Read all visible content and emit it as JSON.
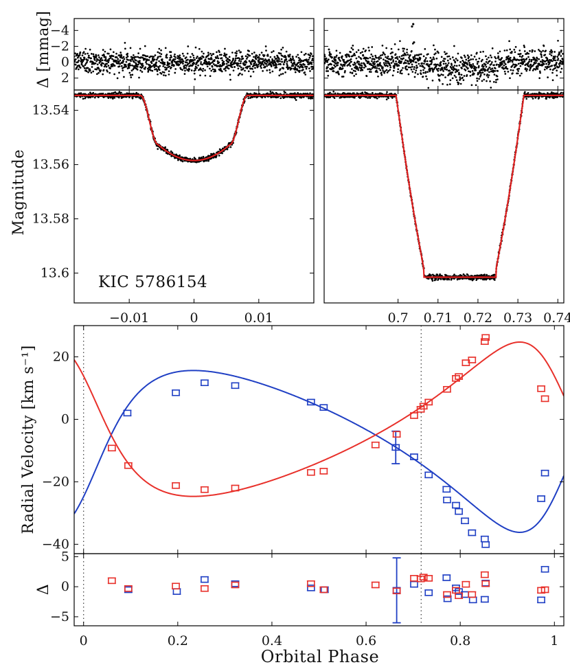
{
  "figure": {
    "object_label": "KIC 5786154",
    "ylabel_residual_top": "Δ  [mmag]",
    "ylabel_magnitude": "Magnitude",
    "ylabel_rv": "Radial Velocity [km s⁻¹]",
    "ylabel_residual_bottom": "Δ",
    "xlabel": "Orbital Phase"
  },
  "colors": {
    "model": "#e02020",
    "primary": "#1f3fc4",
    "secondary": "#e8302a",
    "points": "#000000"
  },
  "chart_data": [
    {
      "id": "lc_resid_left",
      "type": "scatter",
      "title": "",
      "ylabel": "Δ [mmag]",
      "xlim": [
        -0.0185,
        0.0185
      ],
      "ylim": [
        3.5,
        -5.5
      ],
      "yticks": [
        -4,
        -2,
        0,
        2
      ],
      "ytick_labels": [
        "−4",
        "−2",
        "0",
        "2"
      ],
      "description_of_points": "Residuals of ~900 photometric points scattered around 0 with spread of about ±1.5 mmag",
      "x_range_points": [
        -0.0185,
        0.0185
      ],
      "center": 0,
      "scatter_sigma": 0.7
    },
    {
      "id": "lc_resid_right",
      "type": "scatter",
      "ylabel": "",
      "xlim": [
        0.6815,
        0.7415
      ],
      "ylim": [
        3.5,
        -5.5
      ],
      "yticks": [
        -4,
        -2,
        0,
        2
      ],
      "center": 0,
      "scatter_sigma": 0.8,
      "outliers": [
        {
          "x": 0.7035,
          "y": -4.5
        },
        {
          "x": 0.7038,
          "y": -4.8
        },
        {
          "x": 0.704,
          "y": -2.5
        }
      ]
    },
    {
      "id": "lc_primary",
      "type": "line",
      "title": "",
      "ylabel": "Magnitude",
      "xlim": [
        -0.0185,
        0.0185
      ],
      "ylim": [
        13.611,
        13.5325
      ],
      "xticks": [
        -0.01,
        0,
        0.01
      ],
      "xtick_labels": [
        "−0.01",
        "0",
        "0.01"
      ],
      "yticks": [
        13.54,
        13.56,
        13.58,
        13.6
      ],
      "ytick_labels": [
        "13.54",
        "13.56",
        "13.58",
        "13.6"
      ],
      "model": {
        "out_of_eclipse_mag": 13.5345,
        "min_mag": 13.5585,
        "center_phase": 0,
        "first_contact": 0.0083,
        "second_contact": 0.0055,
        "shape": "limb-darkened partial eclipse"
      }
    },
    {
      "id": "lc_secondary",
      "type": "line",
      "ylabel": "",
      "xlim": [
        0.6815,
        0.7415
      ],
      "ylim": [
        13.611,
        13.5325
      ],
      "xticks": [
        0.7,
        0.71,
        0.72,
        0.73,
        0.74
      ],
      "xtick_labels": [
        "0.7",
        "0.71",
        "0.72",
        "0.73",
        "0.74"
      ],
      "model": {
        "out_of_eclipse_mag": 13.5345,
        "min_mag": 13.6015,
        "ingress_start": 0.6995,
        "ingress_end": 0.7065,
        "egress_start": 0.7245,
        "egress_end": 0.7315,
        "shape": "total (flat-bottomed) eclipse"
      }
    },
    {
      "id": "rv",
      "type": "scatter",
      "xlabel": "",
      "ylabel": "Radial Velocity [km s⁻¹]",
      "xlim": [
        -0.02,
        1.02
      ],
      "ylim": [
        -43,
        30
      ],
      "yticks": [
        -40,
        -20,
        0,
        20
      ],
      "ytick_labels": [
        "−40",
        "−20",
        "0",
        "20"
      ],
      "vlines": [
        0,
        0.717
      ],
      "series": [
        {
          "name": "primary",
          "color": "blue",
          "points": [
            {
              "x": 0.093,
              "y": 2.0
            },
            {
              "x": 0.196,
              "y": 8.5
            },
            {
              "x": 0.257,
              "y": 11.7
            },
            {
              "x": 0.322,
              "y": 10.8
            },
            {
              "x": 0.483,
              "y": 5.5
            },
            {
              "x": 0.51,
              "y": 3.8
            },
            {
              "x": 0.663,
              "y": -9.0,
              "err": 5.2
            },
            {
              "x": 0.702,
              "y": -12.0
            },
            {
              "x": 0.733,
              "y": -17.8
            },
            {
              "x": 0.771,
              "y": -22.4
            },
            {
              "x": 0.772,
              "y": -25.8
            },
            {
              "x": 0.791,
              "y": -27.5
            },
            {
              "x": 0.797,
              "y": -29.5
            },
            {
              "x": 0.81,
              "y": -32.5
            },
            {
              "x": 0.825,
              "y": -36.3
            },
            {
              "x": 0.852,
              "y": -38.3
            },
            {
              "x": 0.854,
              "y": -40.1
            },
            {
              "x": 0.972,
              "y": -25.4
            },
            {
              "x": 0.98,
              "y": -17.2
            }
          ]
        },
        {
          "name": "secondary",
          "color": "red",
          "points": [
            {
              "x": 0.06,
              "y": -9.2
            },
            {
              "x": 0.095,
              "y": -14.8
            },
            {
              "x": 0.196,
              "y": -21.2
            },
            {
              "x": 0.257,
              "y": -22.5
            },
            {
              "x": 0.322,
              "y": -22.0
            },
            {
              "x": 0.483,
              "y": -17.0
            },
            {
              "x": 0.51,
              "y": -16.6
            },
            {
              "x": 0.62,
              "y": -8.2
            },
            {
              "x": 0.665,
              "y": -4.8
            },
            {
              "x": 0.702,
              "y": 1.2
            },
            {
              "x": 0.716,
              "y": 3.2
            },
            {
              "x": 0.722,
              "y": 4.2
            },
            {
              "x": 0.733,
              "y": 5.5
            },
            {
              "x": 0.772,
              "y": 9.6
            },
            {
              "x": 0.791,
              "y": 13.1
            },
            {
              "x": 0.797,
              "y": 13.7
            },
            {
              "x": 0.812,
              "y": 18.1
            },
            {
              "x": 0.825,
              "y": 19.0
            },
            {
              "x": 0.852,
              "y": 24.9
            },
            {
              "x": 0.854,
              "y": 26.2
            },
            {
              "x": 0.972,
              "y": 9.8
            },
            {
              "x": 0.98,
              "y": 6.6
            }
          ]
        }
      ],
      "models": {
        "primary": {
          "K": 25.9,
          "gamma": -5.0,
          "e": 0.364,
          "omega_deg": 236,
          "T0_phase": 0.0
        },
        "secondary": {
          "K": 24.7,
          "gamma": -5.0,
          "e": 0.364,
          "omega_deg": 56,
          "T0_phase": 0.0
        }
      }
    },
    {
      "id": "rv_resid",
      "type": "scatter",
      "xlabel": "Orbital Phase",
      "ylabel": "Δ",
      "xlim": [
        -0.02,
        1.02
      ],
      "ylim": [
        -6.5,
        5.5
      ],
      "xticks": [
        0,
        0.2,
        0.4,
        0.6,
        0.8,
        1
      ],
      "xtick_labels": [
        "0",
        "0.2",
        "0.4",
        "0.6",
        "0.8",
        "1"
      ],
      "yticks": [
        -5,
        0,
        5
      ],
      "ytick_labels": [
        "−5",
        "0",
        "5"
      ],
      "vlines": [
        0,
        0.717
      ],
      "series": [
        {
          "name": "primary",
          "color": "blue",
          "points": [
            {
              "x": 0.095,
              "y": -0.5
            },
            {
              "x": 0.198,
              "y": -0.8
            },
            {
              "x": 0.257,
              "y": 1.2
            },
            {
              "x": 0.322,
              "y": 0.5
            },
            {
              "x": 0.483,
              "y": -0.2
            },
            {
              "x": 0.512,
              "y": -0.5
            },
            {
              "x": 0.665,
              "y": -0.6,
              "err": 5.4
            },
            {
              "x": 0.702,
              "y": 0.4
            },
            {
              "x": 0.733,
              "y": -1.0
            },
            {
              "x": 0.771,
              "y": 1.5
            },
            {
              "x": 0.773,
              "y": -2.0
            },
            {
              "x": 0.791,
              "y": -0.2
            },
            {
              "x": 0.797,
              "y": -0.8
            },
            {
              "x": 0.81,
              "y": -1.3
            },
            {
              "x": 0.827,
              "y": -2.2
            },
            {
              "x": 0.852,
              "y": -2.1
            },
            {
              "x": 0.854,
              "y": 0.6
            },
            {
              "x": 0.972,
              "y": -2.2
            },
            {
              "x": 0.98,
              "y": 2.9
            }
          ]
        },
        {
          "name": "secondary",
          "color": "red",
          "points": [
            {
              "x": 0.06,
              "y": 1.0
            },
            {
              "x": 0.095,
              "y": -0.3
            },
            {
              "x": 0.196,
              "y": 0.1
            },
            {
              "x": 0.257,
              "y": -0.3
            },
            {
              "x": 0.322,
              "y": 0.3
            },
            {
              "x": 0.483,
              "y": 0.5
            },
            {
              "x": 0.51,
              "y": -0.5
            },
            {
              "x": 0.62,
              "y": 0.3
            },
            {
              "x": 0.665,
              "y": -0.7
            },
            {
              "x": 0.702,
              "y": 1.4
            },
            {
              "x": 0.716,
              "y": 1.3
            },
            {
              "x": 0.722,
              "y": 1.6
            },
            {
              "x": 0.733,
              "y": 1.4
            },
            {
              "x": 0.772,
              "y": -1.3
            },
            {
              "x": 0.791,
              "y": -0.6
            },
            {
              "x": 0.797,
              "y": -1.5
            },
            {
              "x": 0.812,
              "y": 0.4
            },
            {
              "x": 0.825,
              "y": -1.3
            },
            {
              "x": 0.852,
              "y": 2.0
            },
            {
              "x": 0.854,
              "y": 0.5
            },
            {
              "x": 0.972,
              "y": -0.6
            },
            {
              "x": 0.98,
              "y": -0.5
            }
          ]
        }
      ]
    }
  ]
}
